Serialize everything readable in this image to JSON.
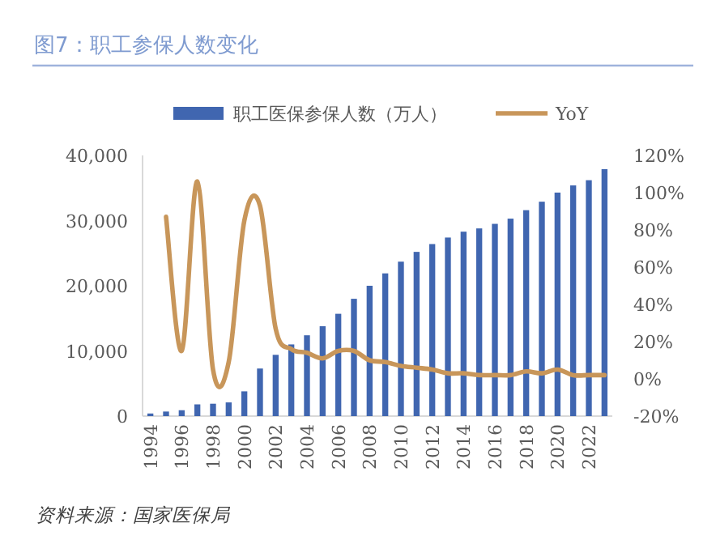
{
  "chart_data": {
    "type": "bar",
    "title": "图7：职工参保人数变化",
    "categories": [
      "1994",
      null,
      "1996",
      null,
      "1998",
      null,
      "2000",
      null,
      "2002",
      null,
      "2004",
      null,
      "2006",
      null,
      "2008",
      null,
      "2010",
      null,
      "2012",
      null,
      "2014",
      null,
      "2016",
      null,
      "2018",
      null,
      "2020",
      null,
      "2022",
      null
    ],
    "series": [
      {
        "name": "职工医保参保人数（万人）",
        "color": "#4066b0",
        "values": [
          400,
          700,
          900,
          1800,
          1900,
          2100,
          3800,
          7300,
          9400,
          11000,
          12400,
          13800,
          15700,
          18000,
          20000,
          21900,
          23700,
          25200,
          26400,
          27400,
          28300,
          28800,
          29500,
          30300,
          31600,
          32900,
          34300,
          35400,
          36200,
          37900
        ]
      },
      {
        "name": "YoY",
        "type": "line",
        "axis": "y2",
        "color": "#c8965a",
        "values": [
          null,
          87,
          15,
          106,
          5,
          9,
          85,
          93,
          27,
          16,
          14,
          11,
          15,
          15,
          10,
          9,
          7,
          6,
          5,
          3,
          3,
          2,
          2,
          2,
          4,
          3,
          5,
          2,
          2,
          2
        ]
      }
    ],
    "ylim": [
      0,
      40000
    ],
    "yticks": [
      {
        "value": 0,
        "label": "0"
      },
      {
        "value": 10000,
        "label": "10,000"
      },
      {
        "value": 20000,
        "label": "20,000"
      },
      {
        "value": 30000,
        "label": "30,000"
      },
      {
        "value": 40000,
        "label": "40,000"
      }
    ],
    "y2lim": [
      -20,
      120
    ],
    "y2ticks": [
      {
        "value": -20,
        "label": "-20%"
      },
      {
        "value": 0,
        "label": "0%"
      },
      {
        "value": 20,
        "label": "20%"
      },
      {
        "value": 40,
        "label": "40%"
      },
      {
        "value": 60,
        "label": "60%"
      },
      {
        "value": 80,
        "label": "80%"
      },
      {
        "value": 100,
        "label": "100%"
      },
      {
        "value": 120,
        "label": "120%"
      }
    ],
    "legend": "top",
    "grid": false,
    "annotations": [
      "资料来源：国家医保局"
    ]
  }
}
